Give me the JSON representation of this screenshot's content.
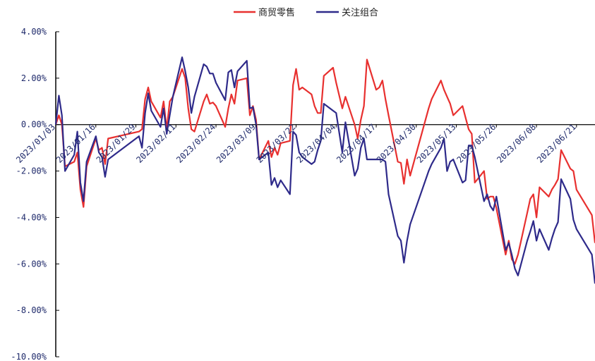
{
  "chart_data": {
    "type": "line",
    "title": "",
    "xlabel": "",
    "ylabel": "",
    "ylim": [
      -10,
      4
    ],
    "y_ticks": [
      "4.00%",
      "2.00%",
      "0.00%",
      "-2.00%",
      "-4.00%",
      "-6.00%",
      "-8.00%",
      "-10.00%"
    ],
    "y_tick_values": [
      4,
      2,
      0,
      -2,
      -4,
      -6,
      -8,
      -10
    ],
    "x_ticks": [
      "2023/01/03",
      "2023/01/16",
      "2023/01/29",
      "2023/02/11",
      "2023/02/24",
      "2023/03/09",
      "2023/03/22",
      "2023/04/04",
      "2023/04/17",
      "2023/04/30",
      "2023/05/13",
      "2023/05/26",
      "2023/06/08",
      "2023/06/21"
    ],
    "legend_position": "top-center",
    "grid": false,
    "series": [
      {
        "name": "商贸零售",
        "color": "#e8302f",
        "points": [
          [
            "2023/01/03",
            0.0
          ],
          [
            "2023/01/04",
            0.4
          ],
          [
            "2023/01/05",
            0.0
          ],
          [
            "2023/01/06",
            -1.8
          ],
          [
            "2023/01/09",
            -1.6
          ],
          [
            "2023/01/10",
            -1.2
          ],
          [
            "2023/01/11",
            -2.8
          ],
          [
            "2023/01/12",
            -3.55
          ],
          [
            "2023/01/13",
            -1.8
          ],
          [
            "2023/01/16",
            -0.6
          ],
          [
            "2023/01/17",
            -1.1
          ],
          [
            "2023/01/18",
            -1.0
          ],
          [
            "2023/01/19",
            -1.7
          ],
          [
            "2023/01/20",
            -0.6
          ],
          [
            "2023/01/30",
            -0.3
          ],
          [
            "2023/01/31",
            -0.2
          ],
          [
            "2023/02/01",
            1.1
          ],
          [
            "2023/02/02",
            1.6
          ],
          [
            "2023/02/03",
            1.0
          ],
          [
            "2023/02/06",
            0.3
          ],
          [
            "2023/02/07",
            1.0
          ],
          [
            "2023/02/08",
            -0.2
          ],
          [
            "2023/02/09",
            1.0
          ],
          [
            "2023/02/10",
            1.2
          ],
          [
            "2023/02/13",
            2.4
          ],
          [
            "2023/02/14",
            2.0
          ],
          [
            "2023/02/15",
            0.7
          ],
          [
            "2023/02/16",
            -0.2
          ],
          [
            "2023/02/17",
            -0.3
          ],
          [
            "2023/02/20",
            1.0
          ],
          [
            "2023/02/21",
            1.3
          ],
          [
            "2023/02/22",
            0.9
          ],
          [
            "2023/02/23",
            0.95
          ],
          [
            "2023/02/24",
            0.8
          ],
          [
            "2023/02/27",
            -0.1
          ],
          [
            "2023/02/28",
            0.7
          ],
          [
            "2023/03/01",
            1.3
          ],
          [
            "2023/03/02",
            0.9
          ],
          [
            "2023/03/03",
            1.9
          ],
          [
            "2023/03/06",
            2.0
          ],
          [
            "2023/03/07",
            0.4
          ],
          [
            "2023/03/08",
            0.8
          ],
          [
            "2023/03/09",
            0.2
          ],
          [
            "2023/03/10",
            -1.5
          ],
          [
            "2023/03/13",
            -0.7
          ],
          [
            "2023/03/14",
            -1.4
          ],
          [
            "2023/03/15",
            -1.0
          ],
          [
            "2023/03/16",
            -1.3
          ],
          [
            "2023/03/17",
            -0.8
          ],
          [
            "2023/03/20",
            -0.7
          ],
          [
            "2023/03/21",
            1.7
          ],
          [
            "2023/03/22",
            2.4
          ],
          [
            "2023/03/23",
            1.5
          ],
          [
            "2023/03/24",
            1.6
          ],
          [
            "2023/03/27",
            1.3
          ],
          [
            "2023/03/28",
            0.8
          ],
          [
            "2023/03/29",
            0.5
          ],
          [
            "2023/03/30",
            0.5
          ],
          [
            "2023/03/31",
            2.1
          ],
          [
            "2023/04/03",
            2.45
          ],
          [
            "2023/04/04",
            1.8
          ],
          [
            "2023/04/06",
            0.7
          ],
          [
            "2023/04/07",
            1.2
          ],
          [
            "2023/04/10",
            0.0
          ],
          [
            "2023/04/11",
            -0.6
          ],
          [
            "2023/04/12",
            0.2
          ],
          [
            "2023/04/13",
            0.8
          ],
          [
            "2023/04/14",
            2.8
          ],
          [
            "2023/04/17",
            1.5
          ],
          [
            "2023/04/18",
            1.6
          ],
          [
            "2023/04/19",
            1.9
          ],
          [
            "2023/04/20",
            1.1
          ],
          [
            "2023/04/21",
            0.4
          ],
          [
            "2023/04/24",
            -1.6
          ],
          [
            "2023/04/25",
            -1.65
          ],
          [
            "2023/04/26",
            -2.55
          ],
          [
            "2023/04/27",
            -1.5
          ],
          [
            "2023/04/28",
            -2.2
          ],
          [
            "2023/05/04",
            0.7
          ],
          [
            "2023/05/05",
            1.1
          ],
          [
            "2023/05/08",
            1.9
          ],
          [
            "2023/05/09",
            1.5
          ],
          [
            "2023/05/10",
            1.2
          ],
          [
            "2023/05/11",
            0.9
          ],
          [
            "2023/05/12",
            0.4
          ],
          [
            "2023/05/15",
            0.8
          ],
          [
            "2023/05/16",
            0.3
          ],
          [
            "2023/05/17",
            -0.2
          ],
          [
            "2023/05/18",
            -0.4
          ],
          [
            "2023/05/19",
            -2.5
          ],
          [
            "2023/05/22",
            -2.0
          ],
          [
            "2023/05/23",
            -3.2
          ],
          [
            "2023/05/24",
            -3.1
          ],
          [
            "2023/05/25",
            -3.1
          ],
          [
            "2023/05/26",
            -3.6
          ],
          [
            "2023/05/29",
            -5.6
          ],
          [
            "2023/05/30",
            -5.0
          ],
          [
            "2023/05/31",
            -5.8
          ],
          [
            "2023/06/01",
            -6.0
          ],
          [
            "2023/06/02",
            -5.6
          ],
          [
            "2023/06/05",
            -3.8
          ],
          [
            "2023/06/06",
            -3.2
          ],
          [
            "2023/06/07",
            -3.0
          ],
          [
            "2023/06/08",
            -4.0
          ],
          [
            "2023/06/09",
            -2.7
          ],
          [
            "2023/06/12",
            -3.1
          ],
          [
            "2023/06/13",
            -2.8
          ],
          [
            "2023/06/14",
            -2.6
          ],
          [
            "2023/06/15",
            -2.35
          ],
          [
            "2023/06/16",
            -1.1
          ],
          [
            "2023/06/19",
            -1.9
          ],
          [
            "2023/06/20",
            -2.0
          ],
          [
            "2023/06/21",
            -2.8
          ],
          [
            "2023/06/26",
            -3.9
          ],
          [
            "2023/06/27",
            -5.1
          ]
        ]
      },
      {
        "name": "关注组合",
        "color": "#2e2a8a",
        "points": [
          [
            "2023/01/03",
            0.0
          ],
          [
            "2023/01/04",
            1.25
          ],
          [
            "2023/01/05",
            0.4
          ],
          [
            "2023/01/06",
            -2.0
          ],
          [
            "2023/01/09",
            -1.3
          ],
          [
            "2023/01/10",
            -0.3
          ],
          [
            "2023/01/11",
            -2.5
          ],
          [
            "2023/01/12",
            -3.3
          ],
          [
            "2023/01/13",
            -1.6
          ],
          [
            "2023/01/16",
            -0.5
          ],
          [
            "2023/01/17",
            -1.2
          ],
          [
            "2023/01/18",
            -1.4
          ],
          [
            "2023/01/19",
            -2.25
          ],
          [
            "2023/01/20",
            -1.5
          ],
          [
            "2023/01/30",
            -0.5
          ],
          [
            "2023/01/31",
            -1.0
          ],
          [
            "2023/02/01",
            0.5
          ],
          [
            "2023/02/02",
            1.35
          ],
          [
            "2023/02/03",
            0.6
          ],
          [
            "2023/02/06",
            -0.1
          ],
          [
            "2023/02/07",
            0.7
          ],
          [
            "2023/02/08",
            -0.4
          ],
          [
            "2023/02/09",
            0.4
          ],
          [
            "2023/02/10",
            1.2
          ],
          [
            "2023/02/13",
            2.9
          ],
          [
            "2023/02/14",
            2.3
          ],
          [
            "2023/02/15",
            1.6
          ],
          [
            "2023/02/16",
            0.5
          ],
          [
            "2023/02/17",
            1.2
          ],
          [
            "2023/02/20",
            2.6
          ],
          [
            "2023/02/21",
            2.5
          ],
          [
            "2023/02/22",
            2.2
          ],
          [
            "2023/02/23",
            2.2
          ],
          [
            "2023/02/24",
            1.8
          ],
          [
            "2023/02/27",
            1.05
          ],
          [
            "2023/02/28",
            2.25
          ],
          [
            "2023/03/01",
            2.35
          ],
          [
            "2023/03/02",
            1.6
          ],
          [
            "2023/03/03",
            2.3
          ],
          [
            "2023/03/06",
            2.75
          ],
          [
            "2023/03/07",
            0.7
          ],
          [
            "2023/03/08",
            0.75
          ],
          [
            "2023/03/09",
            0.0
          ],
          [
            "2023/03/10",
            -1.5
          ],
          [
            "2023/03/13",
            -1.2
          ],
          [
            "2023/03/14",
            -2.6
          ],
          [
            "2023/03/15",
            -2.3
          ],
          [
            "2023/03/16",
            -2.7
          ],
          [
            "2023/03/17",
            -2.4
          ],
          [
            "2023/03/20",
            -3.0
          ],
          [
            "2023/03/21",
            -0.3
          ],
          [
            "2023/03/22",
            -0.45
          ],
          [
            "2023/03/23",
            -1.2
          ],
          [
            "2023/03/24",
            -1.4
          ],
          [
            "2023/03/27",
            -1.7
          ],
          [
            "2023/03/28",
            -1.6
          ],
          [
            "2023/03/29",
            -1.1
          ],
          [
            "2023/03/30",
            -0.7
          ],
          [
            "2023/03/31",
            0.9
          ],
          [
            "2023/04/03",
            0.6
          ],
          [
            "2023/04/04",
            0.5
          ],
          [
            "2023/04/06",
            -1.2
          ],
          [
            "2023/04/07",
            0.1
          ],
          [
            "2023/04/10",
            -2.2
          ],
          [
            "2023/04/11",
            -1.9
          ],
          [
            "2023/04/12",
            -1.0
          ],
          [
            "2023/04/13",
            -0.6
          ],
          [
            "2023/04/14",
            -1.5
          ],
          [
            "2023/04/17",
            -1.5
          ],
          [
            "2023/04/18",
            -1.5
          ],
          [
            "2023/04/19",
            -1.5
          ],
          [
            "2023/04/20",
            -1.6
          ],
          [
            "2023/04/21",
            -3.0
          ],
          [
            "2023/04/24",
            -4.8
          ],
          [
            "2023/04/25",
            -5.0
          ],
          [
            "2023/04/26",
            -5.95
          ],
          [
            "2023/04/27",
            -5.0
          ],
          [
            "2023/04/28",
            -4.3
          ],
          [
            "2023/05/04",
            -2.0
          ],
          [
            "2023/05/05",
            -1.7
          ],
          [
            "2023/05/08",
            -1.0
          ],
          [
            "2023/05/09",
            -0.6
          ],
          [
            "2023/05/10",
            -2.0
          ],
          [
            "2023/05/11",
            -1.6
          ],
          [
            "2023/05/12",
            -1.5
          ],
          [
            "2023/05/15",
            -2.5
          ],
          [
            "2023/05/16",
            -2.4
          ],
          [
            "2023/05/17",
            -0.9
          ],
          [
            "2023/05/18",
            -0.9
          ],
          [
            "2023/05/19",
            -1.4
          ],
          [
            "2023/05/22",
            -3.3
          ],
          [
            "2023/05/23",
            -3.0
          ],
          [
            "2023/05/24",
            -3.5
          ],
          [
            "2023/05/25",
            -3.7
          ],
          [
            "2023/05/26",
            -3.1
          ],
          [
            "2023/05/29",
            -5.4
          ],
          [
            "2023/05/30",
            -5.1
          ],
          [
            "2023/05/31",
            -5.6
          ],
          [
            "2023/06/01",
            -6.2
          ],
          [
            "2023/06/02",
            -6.5
          ],
          [
            "2023/06/05",
            -5.0
          ],
          [
            "2023/06/06",
            -4.6
          ],
          [
            "2023/06/07",
            -4.15
          ],
          [
            "2023/06/08",
            -5.0
          ],
          [
            "2023/06/09",
            -4.5
          ],
          [
            "2023/06/12",
            -5.4
          ],
          [
            "2023/06/13",
            -4.9
          ],
          [
            "2023/06/14",
            -4.5
          ],
          [
            "2023/06/15",
            -4.2
          ],
          [
            "2023/06/16",
            -2.35
          ],
          [
            "2023/06/19",
            -3.2
          ],
          [
            "2023/06/20",
            -4.1
          ],
          [
            "2023/06/21",
            -4.5
          ],
          [
            "2023/06/26",
            -5.6
          ],
          [
            "2023/06/27",
            -6.85
          ]
        ]
      }
    ]
  }
}
